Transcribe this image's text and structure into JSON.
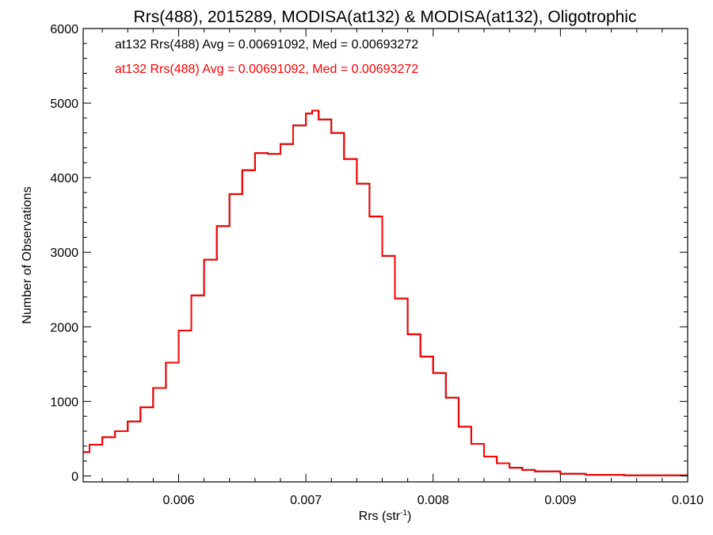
{
  "chart_data": {
    "type": "line",
    "style": "step-histogram",
    "title": "Rrs(488), 2015289, MODISA(at132) & MODISA(at132), Oligotrophic",
    "xlabel_main": "Rrs (str",
    "xlabel_sup": "-1",
    "xlabel_close": ")",
    "ylabel": "Number of Observations",
    "xlim": [
      0.00525,
      0.01
    ],
    "ylim": [
      -80,
      6000
    ],
    "x_ticks": [
      0.006,
      0.007,
      0.008,
      0.009,
      0.01
    ],
    "x_tick_labels": [
      "0.006",
      "0.007",
      "0.008",
      "0.009",
      "0.010"
    ],
    "y_ticks": [
      0,
      1000,
      2000,
      3000,
      4000,
      5000,
      6000
    ],
    "y_tick_labels": [
      "0",
      "1000",
      "2000",
      "3000",
      "4000",
      "5000",
      "6000"
    ],
    "annotations": [
      {
        "text": "at132 Rrs(488) Avg = 0.00691092, Med = 0.00693272",
        "color": "#000000"
      },
      {
        "text": "at132 Rrs(488) Avg = 0.00691092, Med = 0.00693272",
        "color": "#ff0000"
      }
    ],
    "series": [
      {
        "color": "#000000",
        "x": [
          0.00525,
          0.0053,
          0.0054,
          0.0055,
          0.0056,
          0.0057,
          0.0058,
          0.0059,
          0.006,
          0.0061,
          0.0062,
          0.0063,
          0.0064,
          0.0065,
          0.0066,
          0.0067,
          0.0068,
          0.0069,
          0.007,
          0.00705,
          0.0071,
          0.0072,
          0.0073,
          0.0074,
          0.0075,
          0.0076,
          0.0077,
          0.0078,
          0.0079,
          0.008,
          0.0081,
          0.0082,
          0.0083,
          0.0084,
          0.0085,
          0.0086,
          0.0087,
          0.0088,
          0.009,
          0.0092,
          0.0095,
          0.01
        ],
        "y": [
          320,
          420,
          520,
          600,
          730,
          920,
          1180,
          1520,
          1950,
          2420,
          2900,
          3350,
          3780,
          4100,
          4330,
          4320,
          4450,
          4700,
          4860,
          4900,
          4780,
          4600,
          4250,
          3920,
          3480,
          2950,
          2380,
          1900,
          1600,
          1380,
          1050,
          660,
          430,
          260,
          170,
          110,
          80,
          60,
          30,
          15,
          8,
          5
        ]
      },
      {
        "color": "#ff0000",
        "x": [
          0.00525,
          0.0053,
          0.0054,
          0.0055,
          0.0056,
          0.0057,
          0.0058,
          0.0059,
          0.006,
          0.0061,
          0.0062,
          0.0063,
          0.0064,
          0.0065,
          0.0066,
          0.0067,
          0.0068,
          0.0069,
          0.007,
          0.00705,
          0.0071,
          0.0072,
          0.0073,
          0.0074,
          0.0075,
          0.0076,
          0.0077,
          0.0078,
          0.0079,
          0.008,
          0.0081,
          0.0082,
          0.0083,
          0.0084,
          0.0085,
          0.0086,
          0.0087,
          0.0088,
          0.009,
          0.0092,
          0.0095,
          0.01
        ],
        "y": [
          320,
          420,
          520,
          600,
          730,
          920,
          1180,
          1520,
          1950,
          2420,
          2900,
          3350,
          3780,
          4100,
          4330,
          4320,
          4450,
          4700,
          4860,
          4900,
          4780,
          4600,
          4250,
          3920,
          3480,
          2950,
          2380,
          1900,
          1600,
          1380,
          1050,
          660,
          430,
          260,
          170,
          110,
          80,
          60,
          30,
          15,
          8,
          5
        ]
      }
    ],
    "grid": false,
    "legend": "none"
  }
}
